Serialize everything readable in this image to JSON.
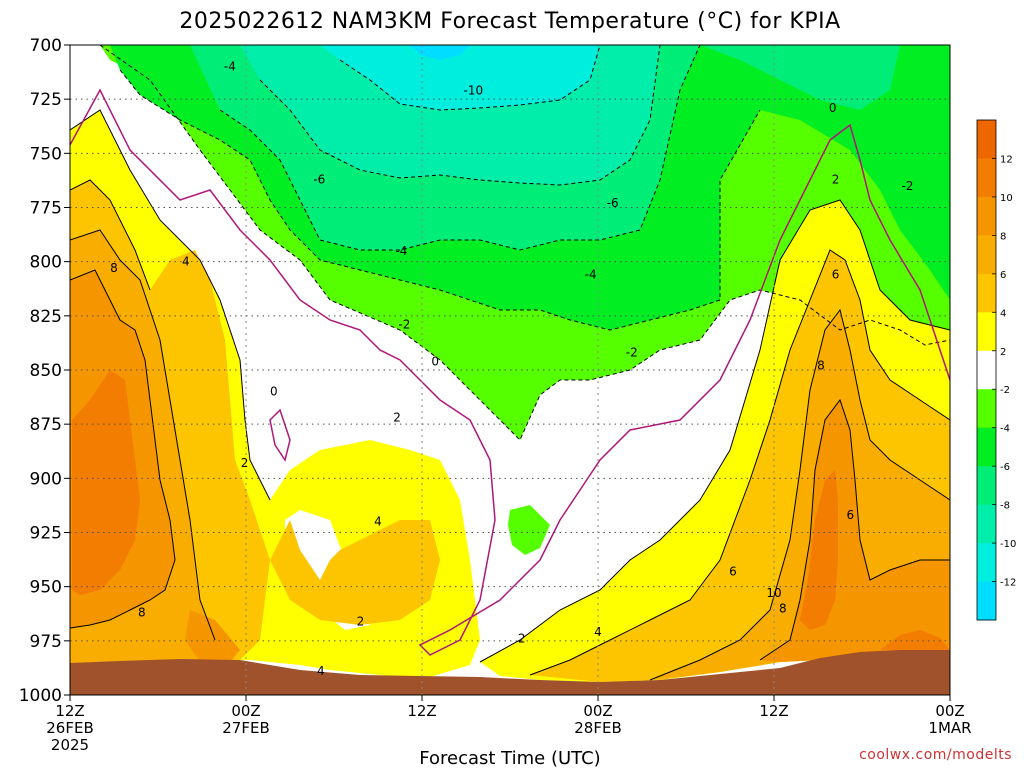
{
  "chart_data": {
    "type": "heatmap",
    "title": "2025022612 NAM3KM Forecast Temperature (°C) for KPIA",
    "xlabel": "Forecast Time (UTC)",
    "ylabel": "",
    "credit": "coolwx.com/modelts",
    "y_axis": {
      "units": "hPa",
      "reversed": true,
      "ylim": [
        1000,
        700
      ],
      "ticks": [
        700,
        725,
        750,
        775,
        800,
        825,
        850,
        875,
        900,
        925,
        950,
        975,
        1000
      ],
      "tick_labels": [
        "700",
        "725",
        "750",
        "775",
        "800",
        "825",
        "850",
        "875",
        "900",
        "925",
        "950",
        "975",
        "1000"
      ]
    },
    "x_axis": {
      "units": "hours from 2025-02-26 12Z",
      "xlim": [
        0,
        60
      ],
      "ticks": [
        0,
        12,
        24,
        36,
        48,
        60
      ],
      "tick_labels": [
        [
          "12Z",
          "26FEB",
          "2025"
        ],
        [
          "00Z",
          "27FEB"
        ],
        [
          "12Z"
        ],
        [
          "00Z",
          "28FEB"
        ],
        [
          "12Z"
        ],
        [
          "00Z",
          "1MAR"
        ]
      ]
    },
    "grid": true,
    "colorbar": {
      "placement": "right",
      "bins": [
        {
          "from": 12,
          "to": 14,
          "color": "#ee6600"
        },
        {
          "from": 10,
          "to": 12,
          "color": "#f27d00"
        },
        {
          "from": 8,
          "to": 10,
          "color": "#f59500"
        },
        {
          "from": 6,
          "to": 8,
          "color": "#f9ad00"
        },
        {
          "from": 4,
          "to": 6,
          "color": "#fcc500"
        },
        {
          "from": 2,
          "to": 4,
          "color": "#ffff00"
        },
        {
          "from": -2,
          "to": 2,
          "color": "#ffffff"
        },
        {
          "from": -4,
          "to": -2,
          "color": "#55ff00"
        },
        {
          "from": -6,
          "to": -4,
          "color": "#00ee22"
        },
        {
          "from": -8,
          "to": -6,
          "color": "#00ee77"
        },
        {
          "from": -10,
          "to": -8,
          "color": "#00eeaa"
        },
        {
          "from": -12,
          "to": -10,
          "color": "#00eedd"
        },
        {
          "from": -14,
          "to": -12,
          "color": "#00ddff"
        }
      ],
      "tick_labels": [
        "12",
        "10",
        "8",
        "6",
        "4",
        "2",
        "-2",
        "-4",
        "-6",
        "-8",
        "-10",
        "-12"
      ]
    },
    "contour_labels": [
      {
        "value": "-4",
        "x": 10.9,
        "p": 710
      },
      {
        "value": "-10",
        "x": 27.5,
        "p": 721
      },
      {
        "value": "-6",
        "x": 17.0,
        "p": 762
      },
      {
        "value": "-6",
        "x": 37.0,
        "p": 773
      },
      {
        "value": "-4",
        "x": 22.6,
        "p": 795
      },
      {
        "value": "-4",
        "x": 35.5,
        "p": 806
      },
      {
        "value": "-2",
        "x": 22.8,
        "p": 829
      },
      {
        "value": "-2",
        "x": 38.3,
        "p": 842
      },
      {
        "value": "0",
        "x": 24.9,
        "p": 846
      },
      {
        "value": "0",
        "x": 13.9,
        "p": 860
      },
      {
        "value": "0",
        "x": 52.0,
        "p": 729
      },
      {
        "value": "2",
        "x": 52.2,
        "p": 762
      },
      {
        "value": "-2",
        "x": 57.1,
        "p": 765
      },
      {
        "value": "4",
        "x": 7.9,
        "p": 800
      },
      {
        "value": "8",
        "x": 3.0,
        "p": 803
      },
      {
        "value": "6",
        "x": 52.2,
        "p": 806
      },
      {
        "value": "2",
        "x": 22.3,
        "p": 872
      },
      {
        "value": "2",
        "x": 11.9,
        "p": 893
      },
      {
        "value": "4",
        "x": 21.0,
        "p": 920
      },
      {
        "value": "8",
        "x": 51.2,
        "p": 848
      },
      {
        "value": "6",
        "x": 53.2,
        "p": 917
      },
      {
        "value": "6",
        "x": 45.2,
        "p": 943
      },
      {
        "value": "10",
        "x": 48.0,
        "p": 953
      },
      {
        "value": "8",
        "x": 48.6,
        "p": 960
      },
      {
        "value": "8",
        "x": 4.9,
        "p": 962
      },
      {
        "value": "2",
        "x": 19.8,
        "p": 966
      },
      {
        "value": "4",
        "x": 36.0,
        "p": 971
      },
      {
        "value": "2",
        "x": 30.8,
        "p": 974
      },
      {
        "value": "4",
        "x": 17.1,
        "p": 989
      }
    ]
  }
}
